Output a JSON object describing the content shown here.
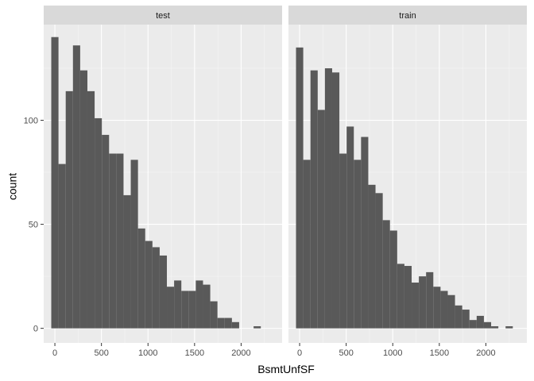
{
  "chart_data": {
    "type": "bar",
    "subtype": "faceted-histogram",
    "xlabel": "BsmtUnfSF",
    "ylabel": "count",
    "x_ticks": [
      0,
      500,
      1000,
      1500,
      2000
    ],
    "y_ticks": [
      0,
      50,
      100
    ],
    "xlim": [
      -120,
      2440
    ],
    "ylim": [
      -7,
      146
    ],
    "bin_width": 77.6,
    "bin_starts": [
      -38.8,
      38.8,
      116.4,
      194.0,
      271.6,
      349.2,
      426.8,
      504.4,
      582.0,
      659.6,
      737.2,
      814.8,
      892.4,
      970.0,
      1047.6,
      1125.2,
      1202.8,
      1280.4,
      1358.0,
      1435.6,
      1513.2,
      1590.8,
      1668.4,
      1746.0,
      1823.6,
      1901.2,
      1978.8,
      2056.4,
      2134.0,
      2211.6,
      2289.2
    ],
    "grid": true,
    "background": "#ebebeb",
    "bar_color": "#595959",
    "facets": [
      {
        "name": "test",
        "values": [
          140,
          79,
          114,
          136,
          124,
          114,
          101,
          93,
          84,
          84,
          64,
          81,
          48,
          42,
          39,
          35,
          20,
          23,
          18,
          18,
          23,
          21,
          13,
          5,
          5,
          3,
          0,
          0,
          1,
          0,
          0
        ]
      },
      {
        "name": "train",
        "values": [
          135,
          81,
          124,
          105,
          125,
          123,
          84,
          97,
          81,
          92,
          69,
          65,
          52,
          47,
          31,
          30,
          22,
          25,
          27,
          20,
          18,
          16,
          11,
          9,
          4,
          6,
          3,
          1,
          0,
          1,
          0
        ]
      }
    ]
  }
}
